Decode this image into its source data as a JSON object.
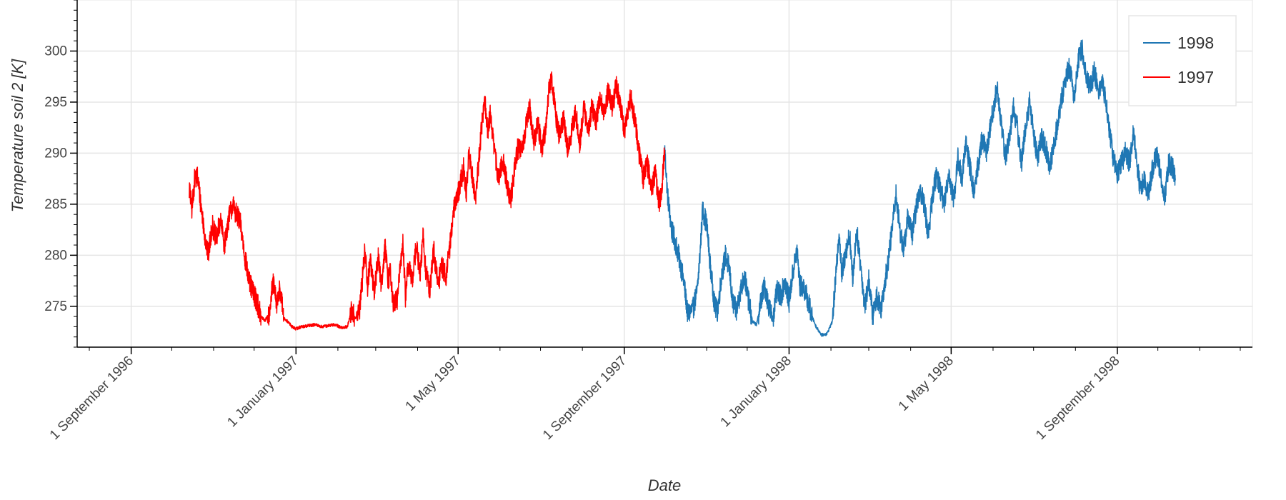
{
  "chart_data": {
    "type": "line",
    "title": "",
    "xlabel": "Date",
    "ylabel": "Temperature soil 2 [K]",
    "x_axis_kind": "datetime",
    "xlim": [
      "1996-07-23",
      "1998-12-10"
    ],
    "ylim": [
      271,
      305
    ],
    "grid": true,
    "legend_position": "top-right",
    "x_ticks": [
      {
        "date": "1996-09-01",
        "label": "1 September 1996"
      },
      {
        "date": "1997-01-01",
        "label": "1 January 1997"
      },
      {
        "date": "1997-05-01",
        "label": "1 May 1997"
      },
      {
        "date": "1997-09-01",
        "label": "1 September 1997"
      },
      {
        "date": "1998-01-01",
        "label": "1 January 1998"
      },
      {
        "date": "1998-05-01",
        "label": "1 May 1998"
      },
      {
        "date": "1998-09-01",
        "label": "1 September 1998"
      }
    ],
    "y_ticks": [
      {
        "value": 275,
        "label": "275"
      },
      {
        "value": 280,
        "label": "280"
      },
      {
        "value": 285,
        "label": "285"
      },
      {
        "value": 290,
        "label": "290"
      },
      {
        "value": 295,
        "label": "295"
      },
      {
        "value": 300,
        "label": "300"
      }
    ],
    "series": [
      {
        "name": "1998",
        "color": "#1f77b4",
        "points": [
          [
            "1997-10-01",
            290.3
          ],
          [
            "1997-10-03",
            286.0
          ],
          [
            "1997-10-06",
            282.5
          ],
          [
            "1997-10-09",
            281.2
          ],
          [
            "1997-10-12",
            279.5
          ],
          [
            "1997-10-15",
            277.5
          ],
          [
            "1997-10-18",
            274.2
          ],
          [
            "1997-10-22",
            274.8
          ],
          [
            "1997-10-25",
            276.5
          ],
          [
            "1997-10-27",
            280.0
          ],
          [
            "1997-10-29",
            284.5
          ],
          [
            "1997-11-01",
            283.0
          ],
          [
            "1997-11-04",
            278.5
          ],
          [
            "1997-11-07",
            275.0
          ],
          [
            "1997-11-09",
            274.5
          ],
          [
            "1997-11-12",
            278.0
          ],
          [
            "1997-11-15",
            280.0
          ],
          [
            "1997-11-18",
            278.5
          ],
          [
            "1997-11-20",
            275.5
          ],
          [
            "1997-11-23",
            274.5
          ],
          [
            "1997-11-26",
            276.5
          ],
          [
            "1997-11-29",
            278.0
          ],
          [
            "1997-12-02",
            275.5
          ],
          [
            "1997-12-05",
            273.5
          ],
          [
            "1997-12-08",
            273.2
          ],
          [
            "1997-12-11",
            275.5
          ],
          [
            "1997-12-14",
            277.0
          ],
          [
            "1997-12-17",
            275.0
          ],
          [
            "1997-12-20",
            273.8
          ],
          [
            "1997-12-23",
            276.5
          ],
          [
            "1997-12-26",
            276.0
          ],
          [
            "1997-12-29",
            277.5
          ],
          [
            "1998-01-01",
            275.5
          ],
          [
            "1998-01-04",
            278.5
          ],
          [
            "1998-01-07",
            280.5
          ],
          [
            "1998-01-09",
            277.0
          ],
          [
            "1998-01-12",
            276.8
          ],
          [
            "1998-01-15",
            275.5
          ],
          [
            "1998-01-18",
            274.0
          ],
          [
            "1998-01-21",
            273.0
          ],
          [
            "1998-01-25",
            272.2
          ],
          [
            "1998-01-29",
            272.3
          ],
          [
            "1998-02-02",
            273.5
          ],
          [
            "1998-02-05",
            278.5
          ],
          [
            "1998-02-07",
            282.5
          ],
          [
            "1998-02-09",
            278.0
          ],
          [
            "1998-02-12",
            280.5
          ],
          [
            "1998-02-15",
            282.0
          ],
          [
            "1998-02-17",
            277.5
          ],
          [
            "1998-02-20",
            282.5
          ],
          [
            "1998-02-23",
            279.0
          ],
          [
            "1998-02-26",
            275.0
          ],
          [
            "1998-03-01",
            277.5
          ],
          [
            "1998-03-04",
            274.0
          ],
          [
            "1998-03-07",
            276.0
          ],
          [
            "1998-03-10",
            274.8
          ],
          [
            "1998-03-13",
            277.5
          ],
          [
            "1998-03-16",
            280.0
          ],
          [
            "1998-03-19",
            283.5
          ],
          [
            "1998-03-21",
            286.0
          ],
          [
            "1998-03-24",
            282.5
          ],
          [
            "1998-03-27",
            280.5
          ],
          [
            "1998-03-30",
            284.0
          ],
          [
            "1998-04-02",
            282.0
          ],
          [
            "1998-04-05",
            284.5
          ],
          [
            "1998-04-08",
            286.5
          ],
          [
            "1998-04-11",
            285.0
          ],
          [
            "1998-04-14",
            282.0
          ],
          [
            "1998-04-17",
            285.5
          ],
          [
            "1998-04-20",
            288.0
          ],
          [
            "1998-04-23",
            286.5
          ],
          [
            "1998-04-26",
            285.0
          ],
          [
            "1998-04-29",
            288.0
          ],
          [
            "1998-05-03",
            285.5
          ],
          [
            "1998-05-06",
            289.5
          ],
          [
            "1998-05-09",
            287.5
          ],
          [
            "1998-05-12",
            291.0
          ],
          [
            "1998-05-15",
            288.5
          ],
          [
            "1998-05-18",
            286.0
          ],
          [
            "1998-05-21",
            289.0
          ],
          [
            "1998-05-24",
            291.5
          ],
          [
            "1998-05-27",
            290.0
          ],
          [
            "1998-05-30",
            292.5
          ],
          [
            "1998-06-02",
            295.0
          ],
          [
            "1998-06-04",
            296.5
          ],
          [
            "1998-06-07",
            293.0
          ],
          [
            "1998-06-10",
            289.5
          ],
          [
            "1998-06-13",
            291.5
          ],
          [
            "1998-06-16",
            294.5
          ],
          [
            "1998-06-19",
            292.5
          ],
          [
            "1998-06-22",
            289.0
          ],
          [
            "1998-06-25",
            292.5
          ],
          [
            "1998-06-28",
            295.0
          ],
          [
            "1998-07-01",
            292.0
          ],
          [
            "1998-07-04",
            289.5
          ],
          [
            "1998-07-07",
            291.5
          ],
          [
            "1998-07-10",
            290.5
          ],
          [
            "1998-07-13",
            288.5
          ],
          [
            "1998-07-16",
            291.0
          ],
          [
            "1998-07-19",
            293.0
          ],
          [
            "1998-07-22",
            295.5
          ],
          [
            "1998-07-25",
            297.5
          ],
          [
            "1998-07-28",
            298.5
          ],
          [
            "1998-07-31",
            295.5
          ],
          [
            "1998-08-03",
            299.0
          ],
          [
            "1998-08-06",
            300.3
          ],
          [
            "1998-08-09",
            297.5
          ],
          [
            "1998-08-12",
            296.5
          ],
          [
            "1998-08-15",
            298.0
          ],
          [
            "1998-08-18",
            296.0
          ],
          [
            "1998-08-21",
            297.0
          ],
          [
            "1998-08-24",
            294.5
          ],
          [
            "1998-08-27",
            291.5
          ],
          [
            "1998-08-29",
            289.5
          ],
          [
            "1998-09-01",
            288.0
          ],
          [
            "1998-09-04",
            289.0
          ],
          [
            "1998-09-07",
            290.0
          ],
          [
            "1998-09-10",
            289.0
          ],
          [
            "1998-09-13",
            292.0
          ],
          [
            "1998-09-16",
            288.5
          ],
          [
            "1998-09-18",
            286.5
          ],
          [
            "1998-09-21",
            287.5
          ],
          [
            "1998-09-24",
            286.0
          ],
          [
            "1998-09-27",
            288.5
          ],
          [
            "1998-09-30",
            290.0
          ],
          [
            "1998-10-03",
            288.0
          ],
          [
            "1998-10-06",
            285.5
          ],
          [
            "1998-10-09",
            289.0
          ],
          [
            "1998-10-12",
            288.5
          ],
          [
            "1998-10-14",
            287.5
          ]
        ]
      },
      {
        "name": "1997",
        "color": "#ff0000",
        "points": [
          [
            "1996-10-14",
            286.5
          ],
          [
            "1996-10-16",
            284.5
          ],
          [
            "1996-10-18",
            287.5
          ],
          [
            "1996-10-20",
            287.8
          ],
          [
            "1996-10-23",
            284.5
          ],
          [
            "1996-10-26",
            281.5
          ],
          [
            "1996-10-28",
            280.0
          ],
          [
            "1996-10-31",
            283.0
          ],
          [
            "1996-11-03",
            281.5
          ],
          [
            "1996-11-06",
            283.5
          ],
          [
            "1996-11-09",
            281.0
          ],
          [
            "1996-11-12",
            283.5
          ],
          [
            "1996-11-15",
            285.0
          ],
          [
            "1996-11-18",
            284.0
          ],
          [
            "1996-11-21",
            283.0
          ],
          [
            "1996-11-24",
            280.0
          ],
          [
            "1996-11-27",
            277.5
          ],
          [
            "1996-11-30",
            276.5
          ],
          [
            "1996-12-03",
            275.5
          ],
          [
            "1996-12-06",
            274.0
          ],
          [
            "1996-12-09",
            273.6
          ],
          [
            "1996-12-12",
            274.2
          ],
          [
            "1996-12-15",
            277.3
          ],
          [
            "1996-12-18",
            275.0
          ],
          [
            "1996-12-20",
            277.0
          ],
          [
            "1996-12-23",
            273.8
          ],
          [
            "1996-12-26",
            273.5
          ],
          [
            "1996-12-29",
            273.0
          ],
          [
            "1997-01-01",
            272.8
          ],
          [
            "1997-01-05",
            273.0
          ],
          [
            "1997-01-10",
            273.1
          ],
          [
            "1997-01-15",
            273.2
          ],
          [
            "1997-01-20",
            273.0
          ],
          [
            "1997-01-25",
            273.1
          ],
          [
            "1997-01-30",
            273.2
          ],
          [
            "1997-02-04",
            272.9
          ],
          [
            "1997-02-08",
            273.0
          ],
          [
            "1997-02-11",
            274.5
          ],
          [
            "1997-02-14",
            273.8
          ],
          [
            "1997-02-17",
            274.5
          ],
          [
            "1997-02-19",
            277.5
          ],
          [
            "1997-02-21",
            280.5
          ],
          [
            "1997-02-23",
            277.0
          ],
          [
            "1997-02-25",
            279.5
          ],
          [
            "1997-02-28",
            276.5
          ],
          [
            "1997-03-03",
            280.0
          ],
          [
            "1997-03-05",
            277.0
          ],
          [
            "1997-03-08",
            281.0
          ],
          [
            "1997-03-10",
            277.5
          ],
          [
            "1997-03-12",
            278.5
          ],
          [
            "1997-03-14",
            275.0
          ],
          [
            "1997-03-17",
            275.8
          ],
          [
            "1997-03-19",
            278.5
          ],
          [
            "1997-03-21",
            281.5
          ],
          [
            "1997-03-23",
            276.0
          ],
          [
            "1997-03-25",
            279.0
          ],
          [
            "1997-03-28",
            277.5
          ],
          [
            "1997-03-31",
            281.0
          ],
          [
            "1997-04-03",
            278.0
          ],
          [
            "1997-04-05",
            282.0
          ],
          [
            "1997-04-07",
            278.5
          ],
          [
            "1997-04-10",
            276.5
          ],
          [
            "1997-04-13",
            280.5
          ],
          [
            "1997-04-16",
            277.0
          ],
          [
            "1997-04-19",
            279.0
          ],
          [
            "1997-04-22",
            278.0
          ],
          [
            "1997-04-25",
            281.0
          ],
          [
            "1997-04-27",
            283.5
          ],
          [
            "1997-04-29",
            285.5
          ],
          [
            "1997-05-02",
            286.5
          ],
          [
            "1997-05-05",
            288.5
          ],
          [
            "1997-05-07",
            286.0
          ],
          [
            "1997-05-09",
            290.0
          ],
          [
            "1997-05-12",
            287.5
          ],
          [
            "1997-05-14",
            285.5
          ],
          [
            "1997-05-17",
            290.5
          ],
          [
            "1997-05-19",
            293.5
          ],
          [
            "1997-05-21",
            294.8
          ],
          [
            "1997-05-23",
            292.0
          ],
          [
            "1997-05-25",
            294.0
          ],
          [
            "1997-05-28",
            290.0
          ],
          [
            "1997-05-31",
            287.5
          ],
          [
            "1997-06-03",
            289.5
          ],
          [
            "1997-06-06",
            287.0
          ],
          [
            "1997-06-09",
            285.5
          ],
          [
            "1997-06-11",
            287.5
          ],
          [
            "1997-06-14",
            290.5
          ],
          [
            "1997-06-17",
            290.0
          ],
          [
            "1997-06-20",
            292.5
          ],
          [
            "1997-06-23",
            294.5
          ],
          [
            "1997-06-26",
            291.0
          ],
          [
            "1997-06-29",
            293.0
          ],
          [
            "1997-07-02",
            290.5
          ],
          [
            "1997-07-05",
            292.5
          ],
          [
            "1997-07-07",
            296.0
          ],
          [
            "1997-07-09",
            297.6
          ],
          [
            "1997-07-12",
            294.0
          ],
          [
            "1997-07-15",
            291.5
          ],
          [
            "1997-07-18",
            293.5
          ],
          [
            "1997-07-21",
            290.5
          ],
          [
            "1997-07-24",
            292.0
          ],
          [
            "1997-07-27",
            294.0
          ],
          [
            "1997-07-30",
            291.0
          ],
          [
            "1997-08-02",
            294.5
          ],
          [
            "1997-08-05",
            292.0
          ],
          [
            "1997-08-08",
            294.5
          ],
          [
            "1997-08-11",
            293.0
          ],
          [
            "1997-08-14",
            295.5
          ],
          [
            "1997-08-17",
            294.0
          ],
          [
            "1997-08-20",
            296.0
          ],
          [
            "1997-08-23",
            294.5
          ],
          [
            "1997-08-26",
            296.5
          ],
          [
            "1997-08-29",
            295.0
          ],
          [
            "1997-09-01",
            292.0
          ],
          [
            "1997-09-03",
            294.0
          ],
          [
            "1997-09-06",
            295.5
          ],
          [
            "1997-09-09",
            293.0
          ],
          [
            "1997-09-12",
            290.0
          ],
          [
            "1997-09-15",
            287.5
          ],
          [
            "1997-09-18",
            289.0
          ],
          [
            "1997-09-21",
            286.5
          ],
          [
            "1997-09-24",
            288.0
          ],
          [
            "1997-09-27",
            285.0
          ],
          [
            "1997-09-29",
            287.0
          ],
          [
            "1997-10-01",
            290.3
          ]
        ]
      }
    ]
  }
}
